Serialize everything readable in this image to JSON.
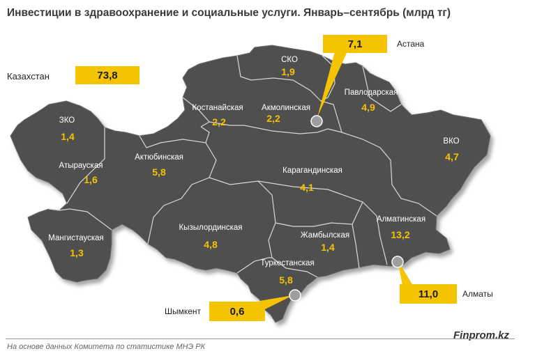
{
  "title": "Инвестиции  в здравоохранение и социальные услуги.  Январь–сентябрь (млрд тг)",
  "total": {
    "label": "Казахстан",
    "value": "73,8"
  },
  "regions": [
    {
      "id": "sko",
      "name": "СКО",
      "value": "1,9"
    },
    {
      "id": "kostanay",
      "name": "Костанайская",
      "value": "2,2"
    },
    {
      "id": "akmola",
      "name": "Акмолинская",
      "value": "2,2"
    },
    {
      "id": "pavlodar",
      "name": "Павлодарская",
      "value": "4,9"
    },
    {
      "id": "zko",
      "name": "ЗКО",
      "value": "1,4"
    },
    {
      "id": "vko",
      "name": "ВКО",
      "value": "4,7"
    },
    {
      "id": "aktobe",
      "name": "Актюбинская",
      "value": "5,8"
    },
    {
      "id": "atyrau",
      "name": "Атырауская",
      "value": "1,6"
    },
    {
      "id": "karaganda",
      "name": "Карагандинская",
      "value": "4,1"
    },
    {
      "id": "kyzylorda",
      "name": "Кызылординская",
      "value": "4,8"
    },
    {
      "id": "almaty",
      "name": "Алматинская",
      "value": "13,2"
    },
    {
      "id": "mangystau",
      "name": "Мангистауская",
      "value": "1,3"
    },
    {
      "id": "zhambyl",
      "name": "Жамбылская",
      "value": "1,4"
    },
    {
      "id": "turkestan",
      "name": "Туркестанская",
      "value": "5,8"
    }
  ],
  "cities": [
    {
      "id": "astana",
      "name": "Астана",
      "value": "7,1"
    },
    {
      "id": "almaty_city",
      "name": "Алматы",
      "value": "11,0"
    },
    {
      "id": "shymkent",
      "name": "Шымкент",
      "value": "0,6"
    }
  ],
  "colors": {
    "map_fill": "#505050",
    "border": "#d9d9d9",
    "accent": "#f5c400",
    "marker": "#9e9e9e"
  },
  "source": "На основе данных  Комитета по статистике МНЭ РК",
  "brand": "Finprom.kz"
}
